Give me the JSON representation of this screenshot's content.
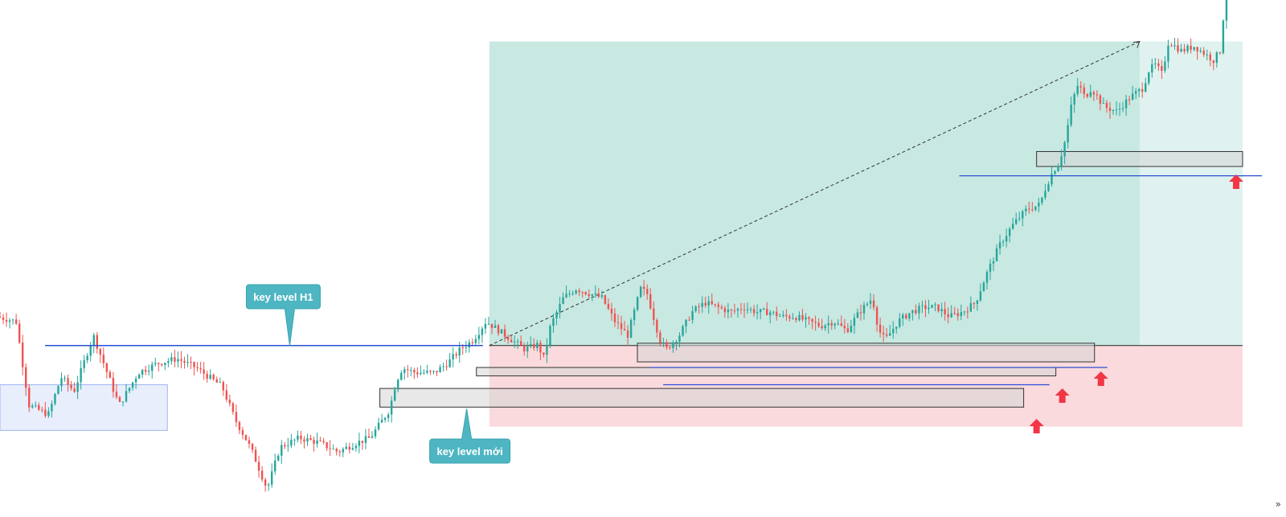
{
  "annotations": {
    "callout_h1": "key level H1",
    "callout_new": "key level mới"
  },
  "colors": {
    "bull": "#26a69a",
    "bear": "#ef5350",
    "profit_zone": "#c8e8e2",
    "profit_zone_light": "#e0f2ef",
    "stop_zone": "#fbdadd",
    "key_line": "#2a4fd6",
    "demand_box_fill": "#d6d6d6",
    "callout": "#4db6c2",
    "arrow": "#f23645",
    "blue_zone": "#e8eefc"
  },
  "chart_data": {
    "type": "candlestick",
    "title": "",
    "xlabel": "",
    "ylabel": "",
    "grid": false,
    "legend": "none",
    "ylim": [
      0,
      100
    ],
    "x_range": [
      0,
      196
    ],
    "price_path": [
      [
        0,
        39
      ],
      [
        3,
        38
      ],
      [
        5,
        20
      ],
      [
        8,
        18
      ],
      [
        10,
        26
      ],
      [
        12,
        23
      ],
      [
        15,
        35
      ],
      [
        19,
        20
      ],
      [
        22,
        27
      ],
      [
        25,
        29
      ],
      [
        28,
        30
      ],
      [
        31,
        28
      ],
      [
        35,
        24
      ],
      [
        37,
        17
      ],
      [
        39,
        12
      ],
      [
        40,
        9
      ],
      [
        42,
        2
      ],
      [
        44,
        11
      ],
      [
        47,
        13
      ],
      [
        50,
        12
      ],
      [
        53,
        10
      ],
      [
        56,
        12
      ],
      [
        58,
        13
      ],
      [
        60,
        17
      ],
      [
        61,
        19
      ],
      [
        62,
        25
      ],
      [
        63,
        28
      ],
      [
        65,
        27
      ],
      [
        68,
        27
      ],
      [
        70,
        29
      ],
      [
        72,
        32
      ],
      [
        74,
        34
      ],
      [
        75,
        36
      ],
      [
        76,
        38
      ],
      [
        78,
        36
      ],
      [
        80,
        34
      ],
      [
        82,
        32
      ],
      [
        84,
        33
      ],
      [
        85,
        30
      ],
      [
        86,
        37
      ],
      [
        88,
        43
      ],
      [
        90,
        45
      ],
      [
        92,
        44
      ],
      [
        94,
        43
      ],
      [
        96,
        38
      ],
      [
        98,
        35
      ],
      [
        100,
        45
      ],
      [
        101,
        44
      ],
      [
        102,
        39
      ],
      [
        103,
        34
      ],
      [
        104,
        32
      ],
      [
        106,
        35
      ],
      [
        108,
        40
      ],
      [
        110,
        42
      ],
      [
        112,
        41
      ],
      [
        114,
        40
      ],
      [
        116,
        41
      ],
      [
        118,
        40
      ],
      [
        120,
        40
      ],
      [
        122,
        39
      ],
      [
        124,
        39
      ],
      [
        126,
        38
      ],
      [
        128,
        37
      ],
      [
        130,
        38
      ],
      [
        132,
        36
      ],
      [
        134,
        40
      ],
      [
        136,
        43
      ],
      [
        137,
        36
      ],
      [
        138,
        34
      ],
      [
        140,
        38
      ],
      [
        142,
        40
      ],
      [
        144,
        41
      ],
      [
        146,
        41
      ],
      [
        148,
        39
      ],
      [
        150,
        40
      ],
      [
        152,
        42
      ],
      [
        154,
        49
      ],
      [
        156,
        55
      ],
      [
        158,
        59
      ],
      [
        160,
        62
      ],
      [
        162,
        63
      ],
      [
        163,
        67
      ],
      [
        164,
        70
      ],
      [
        165,
        72
      ],
      [
        166,
        77
      ],
      [
        167,
        85
      ],
      [
        168,
        89
      ],
      [
        169,
        86
      ],
      [
        170,
        88
      ],
      [
        172,
        84
      ],
      [
        174,
        83
      ],
      [
        176,
        86
      ],
      [
        178,
        88
      ],
      [
        179,
        92
      ],
      [
        180,
        93
      ],
      [
        181,
        91
      ],
      [
        182,
        98
      ],
      [
        184,
        96
      ],
      [
        186,
        97
      ],
      [
        188,
        95
      ],
      [
        189,
        94
      ],
      [
        190,
        96
      ],
      [
        191,
        110
      ]
    ],
    "key_levels": [
      {
        "label": "key level H1",
        "price": 32.8,
        "x_from": 7,
        "x_to": 75
      },
      {
        "label": "",
        "price": 28.1,
        "x_from": 101,
        "x_to": 172
      },
      {
        "label": "",
        "price": 24.4,
        "x_from": 103,
        "x_to": 163
      },
      {
        "label": "",
        "price": 69.2,
        "x_from": 149,
        "x_to": 196
      }
    ],
    "zones": [
      {
        "label": "key level mới",
        "top": 23.6,
        "bottom": 19.6,
        "x_from": 59,
        "x_to": 159
      },
      {
        "label": "",
        "top": 33.3,
        "bottom": 29.3,
        "x_from": 99,
        "x_to": 170
      },
      {
        "label": "",
        "top": 28.1,
        "bottom": 26.3,
        "x_from": 74,
        "x_to": 164
      },
      {
        "label": "",
        "top": 74.4,
        "bottom": 71.2,
        "x_from": 161,
        "x_to": 193
      }
    ],
    "position": {
      "entry": 32.8,
      "target": 98,
      "stop": 15.4,
      "x_from": 76,
      "x_to": 193
    }
  }
}
